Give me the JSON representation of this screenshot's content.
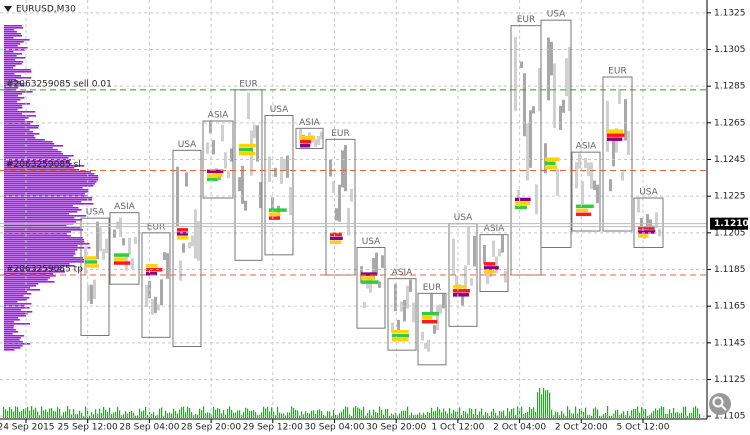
{
  "chart_data": {
    "type": "session-boxes",
    "title": "EURUSD,M30",
    "ylim": [
      1.1104,
      1.1332
    ],
    "yticks": [
      1.1325,
      1.1305,
      1.1285,
      1.1265,
      1.1245,
      1.1225,
      1.1205,
      1.1185,
      1.1165,
      1.1145,
      1.1125,
      1.1105
    ],
    "current_price": {
      "value": 1.121,
      "label": "1.1210"
    },
    "categories": [
      "24 Sep 2015",
      "25 Sep 12:00",
      "28 Sep 04:00",
      "28 Sep 20:00",
      "29 Sep 12:00",
      "30 Sep 04:00",
      "30 Sep 20:00",
      "1 Oct 12:00",
      "2 Oct 04:00",
      "2 Oct 20:00",
      "5 Oct 12:00"
    ],
    "orders": [
      {
        "label": "#2063259085 sell 0.01",
        "value": 1.1283,
        "color": "#2e9e2e"
      },
      {
        "label": "#2063259085 sl",
        "value": 1.1239,
        "color": "#e8603c"
      },
      {
        "label": "#2063259085 tp",
        "value": 1.1182,
        "color": "#e8603c"
      }
    ],
    "sessions": [
      {
        "name": "USA",
        "high": 1.1213,
        "low": 1.1149
      },
      {
        "name": "ASIA",
        "high": 1.1216,
        "low": 1.1177
      },
      {
        "name": "EUR",
        "high": 1.1205,
        "low": 1.1148
      },
      {
        "name": "USA",
        "high": 1.125,
        "low": 1.1143
      },
      {
        "name": "ASIA",
        "high": 1.1266,
        "low": 1.1224
      },
      {
        "name": "EUR",
        "high": 1.1283,
        "low": 1.119
      },
      {
        "name": "USA",
        "high": 1.1269,
        "low": 1.1193
      },
      {
        "name": "ASIA",
        "high": 1.1262,
        "low": 1.1251
      },
      {
        "name": "EUR",
        "high": 1.1256,
        "low": 1.1182
      },
      {
        "name": "USA",
        "high": 1.1197,
        "low": 1.1153
      },
      {
        "name": "ASIA",
        "high": 1.118,
        "low": 1.1141
      },
      {
        "name": "EUR",
        "high": 1.1172,
        "low": 1.1133
      },
      {
        "name": "USA",
        "high": 1.121,
        "low": 1.1154
      },
      {
        "name": "ASIA",
        "high": 1.1204,
        "low": 1.1173
      },
      {
        "name": "EUR",
        "high": 1.1318,
        "low": 1.1182
      },
      {
        "name": "USA",
        "high": 1.1321,
        "low": 1.1197
      },
      {
        "name": "ASIA",
        "high": 1.1249,
        "low": 1.1206
      },
      {
        "name": "EUR",
        "high": 1.129,
        "low": 1.1206
      },
      {
        "name": "USA",
        "high": 1.1224,
        "low": 1.1197
      }
    ]
  }
}
